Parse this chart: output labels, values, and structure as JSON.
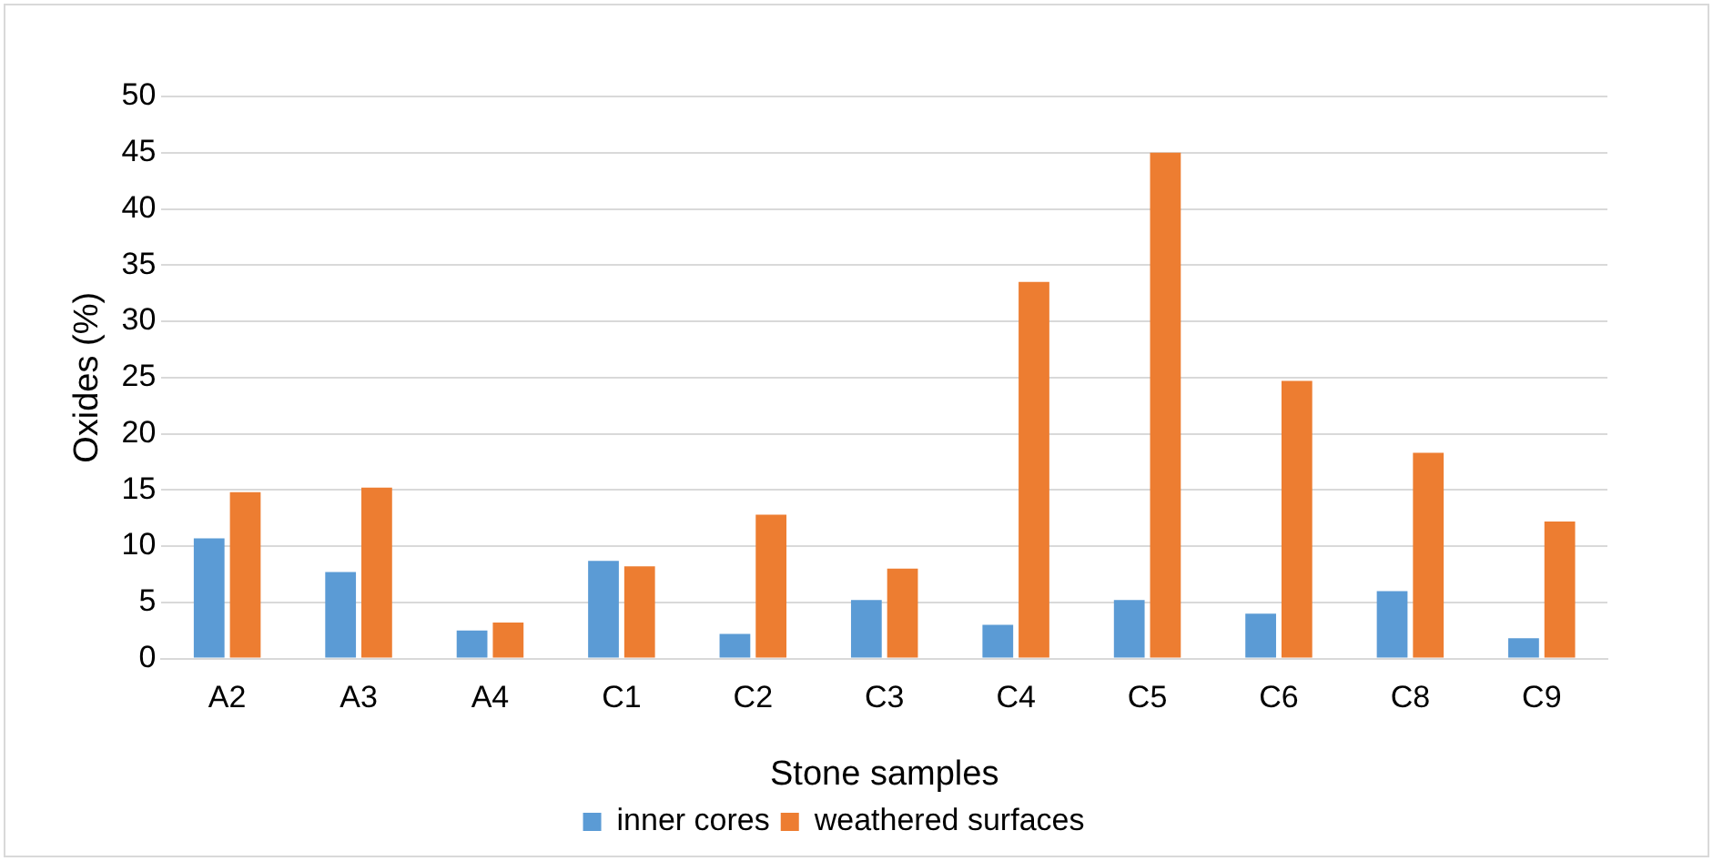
{
  "chart_data": {
    "type": "bar",
    "xlabel": "Stone samples",
    "ylabel": "Oxides (%)",
    "categories": [
      "A2",
      "A3",
      "A4",
      "C1",
      "C2",
      "C3",
      "C4",
      "C5",
      "C6",
      "C8",
      "C9"
    ],
    "series": [
      {
        "name": "inner cores",
        "color": "#5b9bd5",
        "values": [
          10.7,
          7.7,
          2.5,
          8.7,
          2.2,
          5.2,
          3.0,
          5.2,
          4.0,
          6.0,
          1.8
        ]
      },
      {
        "name": "weathered surfaces",
        "color": "#ed7d31",
        "values": [
          14.8,
          15.2,
          3.2,
          8.2,
          12.8,
          8.0,
          33.5,
          45.0,
          24.7,
          18.3,
          12.2
        ]
      }
    ],
    "ylim": [
      0,
      50
    ],
    "yticks": [
      0,
      5,
      10,
      15,
      20,
      25,
      30,
      35,
      40,
      45,
      50
    ],
    "grid": "y",
    "legend": "bottom"
  }
}
